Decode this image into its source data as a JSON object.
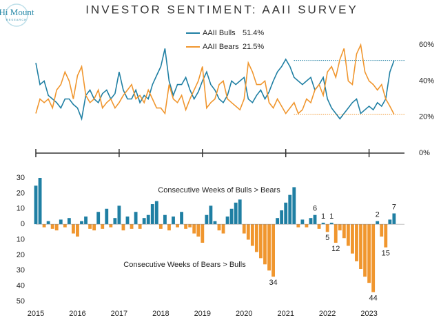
{
  "logo": {
    "name": "Hi Mount",
    "tagline": "RESEARCH"
  },
  "chart_data": [
    {
      "type": "line",
      "title": "INVESTOR SENTIMENT: AAII SURVEY",
      "x": [
        2015,
        2015.1,
        2015.2,
        2015.3,
        2015.4,
        2015.5,
        2015.6,
        2015.7,
        2015.8,
        2015.9,
        2016,
        2016.1,
        2016.2,
        2016.3,
        2016.4,
        2016.5,
        2016.6,
        2016.7,
        2016.8,
        2016.9,
        2017,
        2017.1,
        2017.2,
        2017.3,
        2017.4,
        2017.5,
        2017.6,
        2017.7,
        2017.8,
        2017.9,
        2018,
        2018.1,
        2018.2,
        2018.3,
        2018.4,
        2018.5,
        2018.6,
        2018.7,
        2018.8,
        2018.9,
        2019,
        2019.1,
        2019.2,
        2019.3,
        2019.4,
        2019.5,
        2019.6,
        2019.7,
        2019.8,
        2019.9,
        2020,
        2020.1,
        2020.2,
        2020.3,
        2020.4,
        2020.5,
        2020.6,
        2020.7,
        2020.8,
        2020.9,
        2021,
        2021.1,
        2021.2,
        2021.3,
        2021.4,
        2021.5,
        2021.6,
        2021.7,
        2021.8,
        2021.9,
        2022,
        2022.1,
        2022.2,
        2022.3,
        2022.4,
        2022.5,
        2022.6,
        2022.7,
        2022.8,
        2022.9,
        2023,
        2023.1,
        2023.2,
        2023.3,
        2023.4,
        2023.5,
        2023.6
      ],
      "series": [
        {
          "name": "AAII Bulls",
          "color": "#1f7fa3",
          "latest": {
            "value": 51.4,
            "label": "51.4%"
          },
          "values": [
            50,
            38,
            40,
            32,
            30,
            28,
            25,
            30,
            30,
            27,
            25,
            19,
            32,
            35,
            30,
            28,
            33,
            35,
            30,
            33,
            45,
            35,
            30,
            30,
            35,
            28,
            32,
            30,
            38,
            43,
            48,
            58,
            40,
            32,
            38,
            38,
            42,
            35,
            30,
            34,
            40,
            45,
            38,
            35,
            30,
            28,
            32,
            40,
            38,
            40,
            42,
            30,
            28,
            32,
            35,
            30,
            34,
            40,
            45,
            48,
            52,
            48,
            42,
            40,
            38,
            40,
            42,
            35,
            38,
            42,
            30,
            25,
            22,
            19,
            22,
            25,
            28,
            30,
            22,
            24,
            26,
            24,
            28,
            26,
            30,
            45,
            51.4
          ]
        },
        {
          "name": "AAII Bears",
          "color": "#f0962e",
          "latest": {
            "value": 21.5,
            "label": "21.5%"
          },
          "values": [
            22,
            30,
            28,
            30,
            25,
            35,
            38,
            45,
            40,
            30,
            43,
            48,
            32,
            28,
            30,
            35,
            25,
            28,
            30,
            25,
            28,
            32,
            35,
            38,
            30,
            32,
            28,
            35,
            30,
            25,
            25,
            22,
            38,
            30,
            28,
            32,
            24,
            30,
            35,
            40,
            48,
            25,
            28,
            30,
            38,
            40,
            30,
            28,
            26,
            24,
            30,
            50,
            45,
            38,
            38,
            40,
            28,
            25,
            30,
            26,
            22,
            25,
            28,
            22,
            24,
            30,
            28,
            35,
            38,
            32,
            45,
            48,
            42,
            52,
            58,
            40,
            38,
            55,
            60,
            45,
            40,
            38,
            35,
            38,
            30,
            26,
            21.5
          ]
        }
      ],
      "xlim": [
        2015,
        2023.85
      ],
      "xticks": [
        2015,
        2017,
        2019,
        2021,
        2023
      ],
      "ylim": [
        0,
        65
      ],
      "yticks": [
        {
          "value": 0,
          "label": "0%"
        },
        {
          "value": 20,
          "label": "20%"
        },
        {
          "value": 40,
          "label": "40%"
        },
        {
          "value": 60,
          "label": "60%"
        }
      ]
    },
    {
      "type": "bar",
      "color": "#1f7fa3",
      "negative_color": "#f0962e",
      "annotations": [
        "Consecutive Weeks of Bulls > Bears",
        "Consecutive Weeks of Bears > Bulls"
      ],
      "x": [
        2015,
        2015.1,
        2015.2,
        2015.3,
        2015.4,
        2015.5,
        2015.6,
        2015.7,
        2015.8,
        2015.9,
        2016,
        2016.1,
        2016.2,
        2016.3,
        2016.4,
        2016.5,
        2016.6,
        2016.7,
        2016.8,
        2016.9,
        2017,
        2017.1,
        2017.2,
        2017.3,
        2017.4,
        2017.5,
        2017.6,
        2017.7,
        2017.8,
        2017.9,
        2018,
        2018.1,
        2018.2,
        2018.3,
        2018.4,
        2018.5,
        2018.6,
        2018.7,
        2018.8,
        2018.9,
        2019,
        2019.1,
        2019.2,
        2019.3,
        2019.4,
        2019.5,
        2019.6,
        2019.7,
        2019.8,
        2019.9,
        2020,
        2020.1,
        2020.2,
        2020.3,
        2020.4,
        2020.5,
        2020.6,
        2020.7,
        2020.8,
        2020.9,
        2021,
        2021.1,
        2021.2,
        2021.3,
        2021.4,
        2021.5,
        2021.6,
        2021.7,
        2021.8,
        2021.9,
        2022,
        2022.1,
        2022.2,
        2022.3,
        2022.4,
        2022.5,
        2022.6,
        2022.7,
        2022.8,
        2022.9,
        2023,
        2023.1,
        2023.2,
        2023.3,
        2023.4,
        2023.5,
        2023.6
      ],
      "values": [
        25,
        30,
        -2,
        2,
        -3,
        -4,
        3,
        -2,
        4,
        -6,
        -8,
        2,
        5,
        -3,
        -4,
        8,
        -3,
        10,
        -2,
        4,
        12,
        -4,
        5,
        -3,
        8,
        -3,
        4,
        6,
        13,
        15,
        -3,
        6,
        -4,
        5,
        -2,
        8,
        -3,
        -2,
        -6,
        -8,
        -12,
        6,
        12,
        2,
        -4,
        -6,
        5,
        10,
        14,
        16,
        -6,
        -10,
        -14,
        -18,
        -22,
        -26,
        -30,
        -34,
        4,
        9,
        14,
        19,
        24,
        -2,
        3,
        -2,
        4,
        6,
        -3,
        1,
        -5,
        1,
        -12,
        -4,
        -9,
        -14,
        -19,
        -24,
        -29,
        -34,
        -38,
        -44,
        2,
        -8,
        -15,
        3,
        7
      ],
      "value_labels": [
        null,
        null,
        null,
        null,
        null,
        null,
        null,
        null,
        null,
        null,
        null,
        null,
        null,
        null,
        null,
        null,
        null,
        null,
        null,
        null,
        null,
        null,
        null,
        null,
        null,
        null,
        null,
        null,
        null,
        null,
        null,
        null,
        null,
        null,
        null,
        null,
        null,
        null,
        null,
        null,
        null,
        null,
        null,
        null,
        null,
        null,
        null,
        null,
        null,
        null,
        null,
        null,
        null,
        null,
        null,
        null,
        null,
        "34",
        null,
        null,
        null,
        null,
        null,
        null,
        null,
        null,
        null,
        "6",
        null,
        "1",
        "5",
        "1",
        "12",
        null,
        null,
        null,
        null,
        null,
        null,
        null,
        null,
        "44",
        "2",
        null,
        "15",
        null,
        "7"
      ],
      "xlim": [
        2015,
        2023.85
      ],
      "xticks": [
        2015,
        2016,
        2017,
        2018,
        2019,
        2020,
        2021,
        2022,
        2023
      ],
      "ylim": [
        -50,
        30
      ],
      "yticks": [
        30,
        20,
        10,
        0,
        {
          "value": -10,
          "label": "10"
        },
        {
          "value": -20,
          "label": "20"
        },
        {
          "value": -30,
          "label": "30"
        },
        {
          "value": -40,
          "label": "40"
        },
        {
          "value": -50,
          "label": "50"
        }
      ]
    }
  ]
}
